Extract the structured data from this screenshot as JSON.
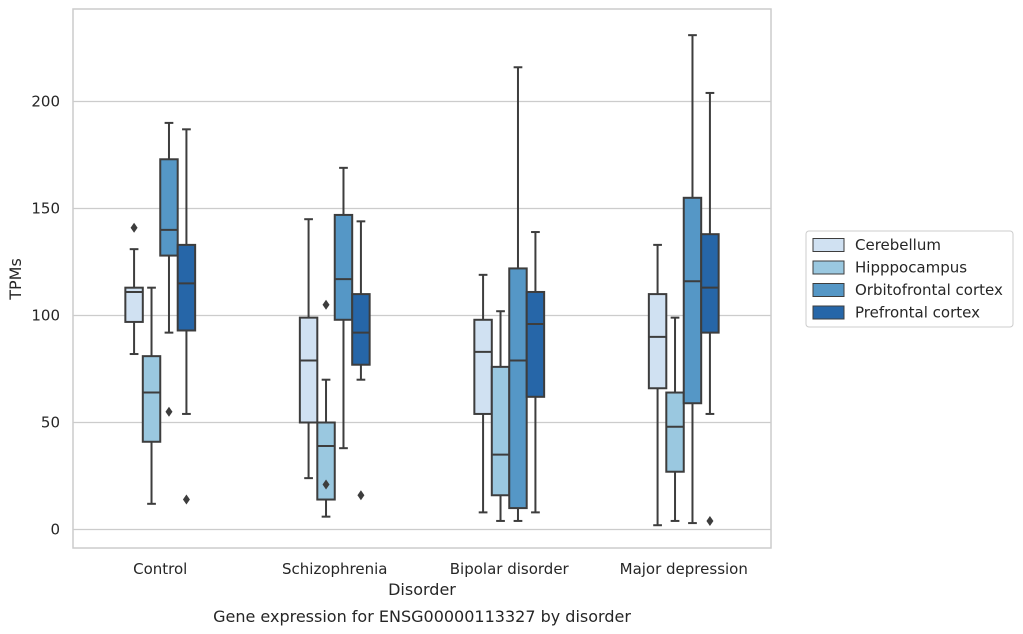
{
  "chart_data": {
    "type": "box",
    "title": "",
    "caption": "Gene expression for ENSG00000113327 by disorder",
    "xlabel": "Disorder",
    "ylabel": "TPMs",
    "ylim": [
      -8,
      243
    ],
    "yticks": [
      0,
      50,
      100,
      150,
      200
    ],
    "grid": "horizontal",
    "legend_position": "right",
    "categories": [
      "Control",
      "Schizophrenia",
      "Bipolar disorder",
      "Major depression"
    ],
    "series": [
      {
        "name": "Cerebellum",
        "color": "#d0e1f2",
        "boxes": [
          {
            "whisker_low": 82,
            "q1": 97,
            "median": 111,
            "q3": 113,
            "whisker_high": 131,
            "outliers": [
              141
            ]
          },
          {
            "whisker_low": 24,
            "q1": 50,
            "median": 79,
            "q3": 99,
            "whisker_high": 145,
            "outliers": []
          },
          {
            "whisker_low": 8,
            "q1": 54,
            "median": 83,
            "q3": 98,
            "whisker_high": 119,
            "outliers": []
          },
          {
            "whisker_low": 2,
            "q1": 66,
            "median": 90,
            "q3": 110,
            "whisker_high": 133,
            "outliers": []
          }
        ]
      },
      {
        "name": "Hipppocampus",
        "color": "#9ac8e0",
        "boxes": [
          {
            "whisker_low": 12,
            "q1": 41,
            "median": 64,
            "q3": 81,
            "whisker_high": 113,
            "outliers": []
          },
          {
            "whisker_low": 6,
            "q1": 14,
            "median": 39,
            "q3": 50,
            "whisker_high": 70,
            "outliers": [
              105,
              21
            ]
          },
          {
            "whisker_low": 4,
            "q1": 16,
            "median": 35,
            "q3": 76,
            "whisker_high": 102,
            "outliers": []
          },
          {
            "whisker_low": 4,
            "q1": 27,
            "median": 48,
            "q3": 64,
            "whisker_high": 99,
            "outliers": []
          }
        ]
      },
      {
        "name": "Orbitofrontal cortex",
        "color": "#5597c6",
        "boxes": [
          {
            "whisker_low": 92,
            "q1": 128,
            "median": 140,
            "q3": 173,
            "whisker_high": 190,
            "outliers": [
              55
            ]
          },
          {
            "whisker_low": 38,
            "q1": 98,
            "median": 117,
            "q3": 147,
            "whisker_high": 169,
            "outliers": []
          },
          {
            "whisker_low": 4,
            "q1": 10,
            "median": 79,
            "q3": 122,
            "whisker_high": 216,
            "outliers": []
          },
          {
            "whisker_low": 3,
            "q1": 59,
            "median": 116,
            "q3": 155,
            "whisker_high": 231,
            "outliers": []
          }
        ]
      },
      {
        "name": "Prefrontal cortex",
        "color": "#2666a8",
        "boxes": [
          {
            "whisker_low": 54,
            "q1": 93,
            "median": 115,
            "q3": 133,
            "whisker_high": 187,
            "outliers": [
              14
            ]
          },
          {
            "whisker_low": 70,
            "q1": 77,
            "median": 92,
            "q3": 110,
            "whisker_high": 144,
            "outliers": [
              16
            ]
          },
          {
            "whisker_low": 8,
            "q1": 62,
            "median": 96,
            "q3": 111,
            "whisker_high": 139,
            "outliers": []
          },
          {
            "whisker_low": 54,
            "q1": 92,
            "median": 113,
            "q3": 138,
            "whisker_high": 204,
            "outliers": [
              4
            ]
          }
        ]
      }
    ]
  }
}
